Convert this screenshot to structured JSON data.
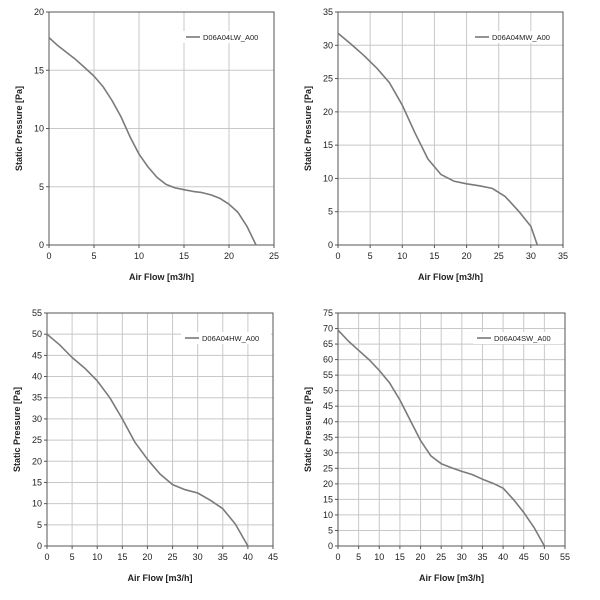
{
  "colors": {
    "curve": "#7a7a7a",
    "grid": "#c8c8c8",
    "frame": "#555555",
    "legend_line": "#7a7a7a"
  },
  "chart_data": [
    {
      "type": "line",
      "xlabel": "Air Flow [m3/h]",
      "ylabel": "Static Pressure [Pa]",
      "xlim": [
        0,
        25
      ],
      "ylim": [
        0,
        20
      ],
      "xticks": [
        0,
        5,
        10,
        15,
        20,
        25
      ],
      "yticks": [
        0,
        5,
        10,
        15,
        20
      ],
      "grid": true,
      "legend_position": "top-right",
      "series": [
        {
          "name": "D06A04LW_A00",
          "x": [
            0,
            1,
            2,
            3,
            4,
            5,
            6,
            7,
            8,
            9,
            10,
            11,
            12,
            13,
            14,
            15,
            16,
            17,
            18,
            19,
            20,
            21,
            22,
            23
          ],
          "y": [
            17.8,
            17.1,
            16.5,
            15.9,
            15.2,
            14.5,
            13.6,
            12.4,
            11.0,
            9.3,
            7.8,
            6.7,
            5.8,
            5.2,
            4.9,
            4.75,
            4.6,
            4.5,
            4.3,
            4.0,
            3.5,
            2.8,
            1.6,
            0.0
          ]
        }
      ]
    },
    {
      "type": "line",
      "xlabel": "Air Flow [m3/h]",
      "ylabel": "Static Pressure [Pa]",
      "xlim": [
        0,
        35
      ],
      "ylim": [
        0,
        35
      ],
      "xticks": [
        0,
        5,
        10,
        15,
        20,
        25,
        30,
        35
      ],
      "yticks": [
        0,
        5,
        10,
        15,
        20,
        25,
        30,
        35
      ],
      "grid": true,
      "legend_position": "top-right",
      "series": [
        {
          "name": "D06A04MW_A00",
          "x": [
            0,
            2,
            4,
            6,
            8,
            10,
            12,
            14,
            16,
            18,
            20,
            22,
            24,
            26,
            28,
            30,
            31
          ],
          "y": [
            31.8,
            30.2,
            28.5,
            26.6,
            24.4,
            21.0,
            16.8,
            12.9,
            10.6,
            9.6,
            9.2,
            8.9,
            8.5,
            7.3,
            5.2,
            2.8,
            0.0
          ]
        }
      ]
    },
    {
      "type": "line",
      "xlabel": "Air Flow [m3/h]",
      "ylabel": "Static Pressure [Pa]",
      "xlim": [
        0,
        45
      ],
      "ylim": [
        0,
        55
      ],
      "xticks": [
        0,
        5,
        10,
        15,
        20,
        25,
        30,
        35,
        40,
        45
      ],
      "yticks": [
        0,
        5,
        10,
        15,
        20,
        25,
        30,
        35,
        40,
        45,
        50,
        55
      ],
      "grid": true,
      "legend_position": "top-right",
      "series": [
        {
          "name": "D06A04HW_A00",
          "x": [
            0,
            2.5,
            5,
            7.5,
            10,
            12.5,
            15,
            17.5,
            20,
            22.5,
            25,
            27.5,
            30,
            32.5,
            35,
            37.5,
            40
          ],
          "y": [
            50,
            47.5,
            44.5,
            42,
            39,
            35,
            30,
            24.5,
            20.5,
            17,
            14.5,
            13.3,
            12.5,
            10.8,
            8.8,
            5.2,
            0.0
          ]
        }
      ]
    },
    {
      "type": "line",
      "xlabel": "Air Flow [m3/h]",
      "ylabel": "Static Pressure [Pa]",
      "xlim": [
        0,
        55
      ],
      "ylim": [
        0,
        75
      ],
      "xticks": [
        0,
        5,
        10,
        15,
        20,
        25,
        30,
        35,
        40,
        45,
        50,
        55
      ],
      "yticks": [
        0,
        5,
        10,
        15,
        20,
        25,
        30,
        35,
        40,
        45,
        50,
        55,
        60,
        65,
        70,
        75
      ],
      "grid": true,
      "legend_position": "top-right",
      "series": [
        {
          "name": "D06A04SW_A00",
          "x": [
            0,
            2.5,
            5,
            7.5,
            10,
            12.5,
            15,
            17.5,
            20,
            22.5,
            25,
            27.5,
            30,
            32.5,
            35,
            37.5,
            40,
            42.5,
            45,
            47.5,
            50
          ],
          "y": [
            69.5,
            66,
            63,
            60,
            56.5,
            52.5,
            47,
            40.5,
            34,
            29,
            26.5,
            25.2,
            24,
            23,
            21.5,
            20.2,
            18.6,
            15,
            10.8,
            6,
            0.0
          ]
        }
      ]
    }
  ]
}
